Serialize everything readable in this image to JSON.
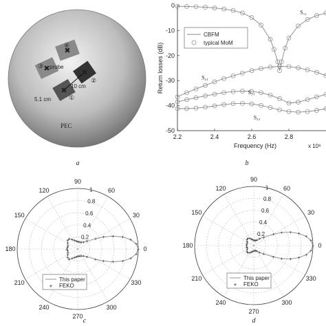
{
  "panel_labels": [
    "a",
    "b",
    "c",
    "d"
  ],
  "sphere": {
    "label_pec": "PEC",
    "label_probe": "probe",
    "label_distance_10": "10 cm",
    "label_distance_5": "5.1 cm",
    "port_labels": [
      "①",
      "②",
      "③",
      "④"
    ]
  },
  "colors": {
    "sphere_light": "#f2f2f2",
    "sphere_dark": "#6e6e6e",
    "patch_dark": "#333333",
    "patch_mid": "#8a8a8a",
    "curve": "#888888",
    "marker": "#888888",
    "grid": "#bbbbbb"
  },
  "chart_data": [
    {
      "type": "line",
      "xlabel": "Frequency (Hz)",
      "xlabel_multiplier": "x 10⁸",
      "ylabel": "Return losses (dB)",
      "xlim": [
        2.2,
        3.0
      ],
      "ylim": [
        -50,
        0
      ],
      "xticks": [
        "2.2",
        "2.4",
        "2.6",
        "2.8"
      ],
      "yticks": [
        "0",
        "-10",
        "-20",
        "-30",
        "-40",
        "-50"
      ],
      "legend": {
        "position": "top-left",
        "entries": [
          "CBFM",
          "typical MoM"
        ]
      },
      "curve_labels": [
        {
          "text": "S₁₁",
          "x": 2.86,
          "y": -3.5
        },
        {
          "text": "S₂₁",
          "x": 2.33,
          "y": -29.5
        },
        {
          "text": "S₃₁",
          "x": 2.58,
          "y": -35.5
        },
        {
          "text": "S₄₁",
          "x": 2.61,
          "y": -45.5
        }
      ],
      "series": [
        {
          "name": "S₁₁",
          "x": [
            2.2,
            2.25,
            2.3,
            2.35,
            2.4,
            2.45,
            2.5,
            2.55,
            2.6,
            2.65,
            2.7,
            2.72,
            2.74,
            2.75,
            2.76,
            2.78,
            2.8,
            2.85,
            2.9,
            2.95,
            3.0
          ],
          "values": [
            -0.3,
            -0.4,
            -0.5,
            -0.7,
            -1.0,
            -1.4,
            -2.0,
            -3.0,
            -4.8,
            -7.8,
            -13.5,
            -17.5,
            -22.5,
            -26.0,
            -22.5,
            -17.0,
            -13.0,
            -8.2,
            -5.6,
            -4.0,
            -3.0
          ]
        },
        {
          "name": "S₂₁",
          "x": [
            2.2,
            2.25,
            2.3,
            2.35,
            2.4,
            2.45,
            2.5,
            2.55,
            2.6,
            2.65,
            2.7,
            2.75,
            2.8,
            2.85,
            2.9,
            2.95,
            3.0
          ],
          "values": [
            -36.5,
            -34.8,
            -33.3,
            -31.9,
            -30.5,
            -29.2,
            -28.1,
            -27.0,
            -26.0,
            -25.2,
            -24.6,
            -24.3,
            -24.4,
            -24.9,
            -25.7,
            -26.7,
            -28.0
          ]
        },
        {
          "name": "S₃₁",
          "x": [
            2.2,
            2.25,
            2.3,
            2.35,
            2.4,
            2.45,
            2.5,
            2.55,
            2.6,
            2.65,
            2.7,
            2.75,
            2.8,
            2.85,
            2.9,
            2.95,
            3.0
          ],
          "values": [
            -38.5,
            -37.6,
            -36.8,
            -36.1,
            -35.4,
            -34.8,
            -34.4,
            -34.2,
            -34.3,
            -34.8,
            -35.8,
            -37.2,
            -39.0,
            -38.6,
            -37.6,
            -36.5,
            -35.5
          ]
        },
        {
          "name": "S₄₁",
          "x": [
            2.2,
            2.25,
            2.3,
            2.35,
            2.4,
            2.45,
            2.5,
            2.55,
            2.6,
            2.65,
            2.7,
            2.75,
            2.8,
            2.85,
            2.9,
            2.95,
            3.0
          ],
          "values": [
            -41.2,
            -41.2,
            -41.0,
            -40.6,
            -40.1,
            -39.6,
            -39.2,
            -39.1,
            -39.3,
            -39.9,
            -40.8,
            -41.7,
            -42.4,
            -42.6,
            -42.4,
            -41.9,
            -41.2
          ]
        }
      ]
    },
    {
      "type": "polar",
      "angle_ticks": [
        "0",
        "30",
        "60",
        "90",
        "120",
        "150",
        "180",
        "210",
        "240",
        "270",
        "300",
        "330"
      ],
      "radial_ticks": [
        "0.2",
        "0.4",
        "0.6",
        "0.8",
        "1"
      ],
      "legend": {
        "position": "bottom-left",
        "entries": [
          "This paper",
          "FEKO"
        ]
      },
      "series": [
        {
          "name": "This paper",
          "theta": [
            0,
            5,
            10,
            15,
            20,
            25,
            30,
            40,
            50,
            60,
            70,
            80,
            90,
            100,
            110,
            120,
            130,
            140,
            150,
            160,
            170,
            180,
            190,
            200,
            210,
            220,
            230,
            240,
            250,
            260,
            270,
            280,
            290,
            300,
            310,
            320,
            330,
            335,
            340,
            345,
            350,
            355
          ],
          "r": [
            1.0,
            0.97,
            0.89,
            0.77,
            0.62,
            0.47,
            0.34,
            0.2,
            0.15,
            0.13,
            0.12,
            0.12,
            0.12,
            0.13,
            0.15,
            0.18,
            0.22,
            0.22,
            0.19,
            0.17,
            0.17,
            0.18,
            0.17,
            0.17,
            0.19,
            0.22,
            0.22,
            0.18,
            0.15,
            0.13,
            0.12,
            0.12,
            0.12,
            0.13,
            0.15,
            0.2,
            0.34,
            0.47,
            0.62,
            0.77,
            0.89,
            0.97
          ]
        }
      ]
    },
    {
      "type": "polar",
      "angle_ticks": [
        "0",
        "30",
        "60",
        "90",
        "120",
        "150",
        "180",
        "210",
        "240",
        "270",
        "300",
        "330"
      ],
      "radial_ticks": [
        "0.2",
        "0.4",
        "0.6",
        "0.8",
        "1"
      ],
      "legend": {
        "position": "bottom-left",
        "entries": [
          "This paper",
          "FEKO"
        ]
      },
      "series": [
        {
          "name": "This paper",
          "theta": [
            0,
            5,
            10,
            15,
            20,
            25,
            30,
            40,
            50,
            60,
            70,
            80,
            90,
            100,
            110,
            120,
            130,
            140,
            150,
            160,
            170,
            180,
            190,
            200,
            210,
            220,
            230,
            240,
            250,
            260,
            270,
            280,
            290,
            300,
            310,
            320,
            330,
            335,
            340,
            345,
            350,
            355
          ],
          "r": [
            1.0,
            0.97,
            0.9,
            0.79,
            0.66,
            0.52,
            0.38,
            0.22,
            0.15,
            0.11,
            0.09,
            0.09,
            0.09,
            0.1,
            0.12,
            0.14,
            0.16,
            0.15,
            0.13,
            0.12,
            0.12,
            0.12,
            0.12,
            0.12,
            0.13,
            0.15,
            0.16,
            0.14,
            0.12,
            0.1,
            0.09,
            0.09,
            0.09,
            0.11,
            0.15,
            0.22,
            0.38,
            0.52,
            0.66,
            0.79,
            0.9,
            0.97
          ]
        }
      ]
    }
  ]
}
